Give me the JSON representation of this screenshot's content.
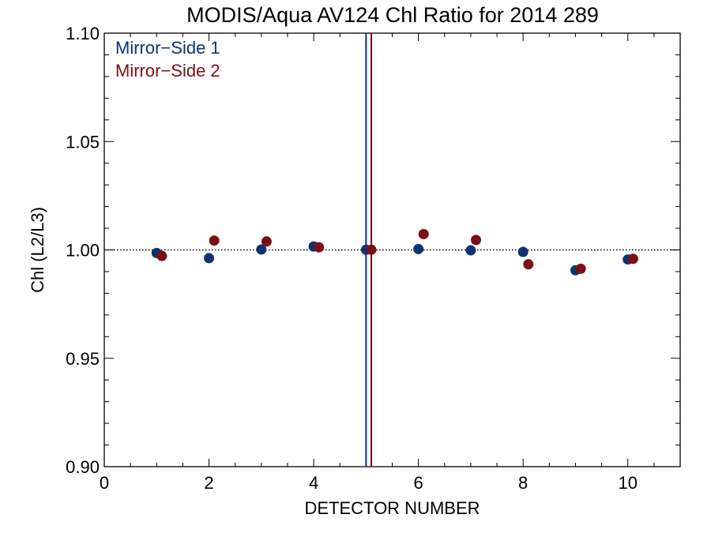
{
  "chart_data": {
    "type": "scatter",
    "title": "MODIS/Aqua AV124 Chl Ratio for 2014 289",
    "xlabel": "DETECTOR NUMBER",
    "ylabel": "Chl (L2/L3)",
    "xlim": [
      0,
      11
    ],
    "ylim": [
      0.9,
      1.1
    ],
    "x_ticks": [
      0,
      2,
      4,
      6,
      8,
      10
    ],
    "x_tick_labels": [
      "0",
      "2",
      "4",
      "6",
      "8",
      "10"
    ],
    "y_ticks": [
      0.9,
      0.95,
      1.0,
      1.05,
      1.1
    ],
    "y_tick_labels": [
      "0.90",
      "0.95",
      "1.00",
      "1.05",
      "1.10"
    ],
    "reference_line": {
      "y": 1.0,
      "style": "dotted",
      "color": "#000000"
    },
    "legend_position": "top-left",
    "series": [
      {
        "name": "Mirror−Side 1",
        "color": "#0e3372",
        "x": [
          1,
          2,
          3,
          4,
          5,
          6,
          7,
          8,
          9,
          10
        ],
        "y": [
          0.9986,
          0.9962,
          1.0002,
          1.0016,
          1.0001,
          1.0004,
          0.9998,
          0.9991,
          0.9906,
          0.9956
        ],
        "vertical_line_x": 5.0
      },
      {
        "name": "Mirror−Side 2",
        "color": "#7a0f14",
        "x": [
          1.1,
          2.1,
          3.1,
          4.1,
          5.1,
          6.1,
          7.1,
          8.1,
          9.1,
          10.1
        ],
        "y": [
          0.9972,
          1.0043,
          1.0039,
          1.0012,
          1.0001,
          1.0073,
          1.0046,
          0.9934,
          0.9913,
          0.9959
        ],
        "vertical_line_x": 5.1
      }
    ]
  }
}
